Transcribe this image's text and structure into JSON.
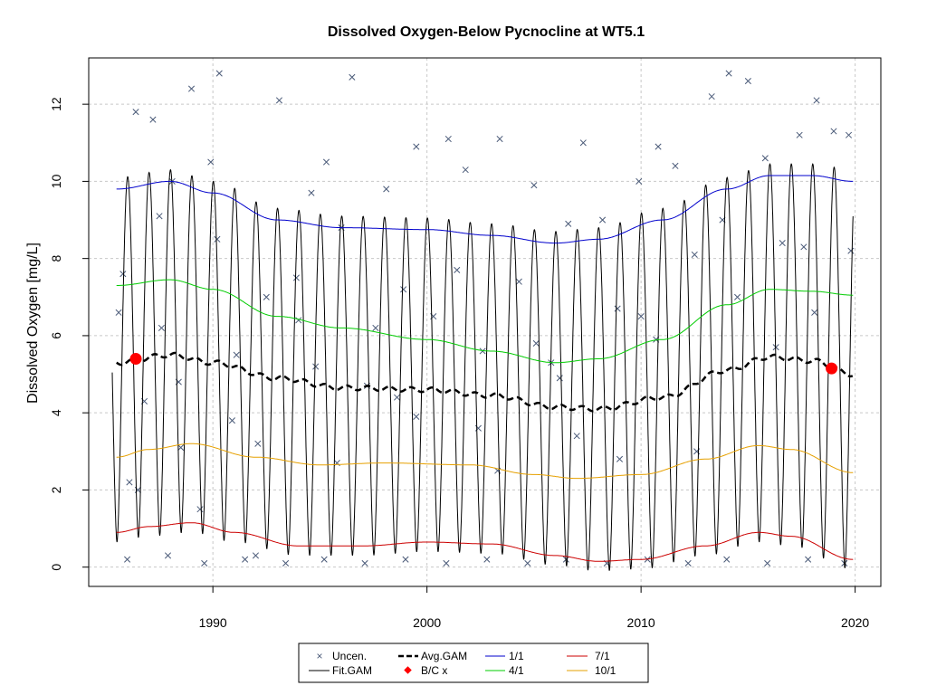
{
  "chart_data": {
    "type": "line",
    "title": "Dissolved Oxygen-Below Pycnocline at WT5.1",
    "xlabel": "",
    "ylabel": "Dissolved Oxygen [mg/L]",
    "xlim": [
      1984.2,
      2021.2
    ],
    "ylim": [
      -0.5,
      13.2
    ],
    "x_ticks": [
      1990,
      2000,
      2010,
      2020
    ],
    "y_ticks": [
      0,
      2,
      4,
      6,
      8,
      10,
      12
    ],
    "grid": true,
    "legend_position": "bottom",
    "legend": [
      "Uncen.",
      "Fit.GAM",
      "Avg.GAM",
      "B/C x",
      "1/1",
      "4/1",
      "7/1",
      "10/1"
    ],
    "colors": {
      "Uncen.": "#4a5a78",
      "Fit.GAM": "#000000",
      "Avg.GAM": "#000000",
      "B/C x": "#ff0000",
      "1/1": "#0000cc",
      "4/1": "#00cc00",
      "7/1": "#cc0000",
      "10/1": "#e6a000"
    },
    "series": [
      {
        "name": "1/1",
        "x": [
          1985.5,
          1988,
          1990,
          1993,
          1996,
          2000,
          2003,
          2006,
          2008,
          2011,
          2014,
          2016,
          2018,
          2019.9
        ],
        "y": [
          9.8,
          10.0,
          9.7,
          9.0,
          8.8,
          8.75,
          8.6,
          8.4,
          8.5,
          9.0,
          9.8,
          10.15,
          10.15,
          10.0
        ]
      },
      {
        "name": "4/1",
        "x": [
          1985.5,
          1988,
          1990,
          1993,
          1996,
          2000,
          2003,
          2006,
          2008,
          2011,
          2014,
          2016,
          2018,
          2019.9
        ],
        "y": [
          7.3,
          7.45,
          7.2,
          6.5,
          6.2,
          5.9,
          5.6,
          5.3,
          5.4,
          5.9,
          6.8,
          7.2,
          7.15,
          7.05
        ]
      },
      {
        "name": "7/1",
        "x": [
          1985.5,
          1987,
          1989,
          1991,
          1994,
          1997,
          2000,
          2003,
          2006,
          2008,
          2010,
          2013,
          2015.5,
          2017,
          2019.9
        ],
        "y": [
          0.9,
          1.05,
          1.15,
          0.9,
          0.55,
          0.55,
          0.65,
          0.6,
          0.3,
          0.15,
          0.2,
          0.55,
          0.9,
          0.8,
          0.2
        ]
      },
      {
        "name": "10/1",
        "x": [
          1985.5,
          1987,
          1989,
          1992,
          1995,
          1998,
          2002,
          2005,
          2007,
          2010,
          2013,
          2015.5,
          2017,
          2019.9
        ],
        "y": [
          2.85,
          3.05,
          3.2,
          2.85,
          2.65,
          2.7,
          2.65,
          2.4,
          2.3,
          2.4,
          2.8,
          3.15,
          3.05,
          2.45
        ]
      },
      {
        "name": "Avg.GAM",
        "x": [
          1985.5,
          1988,
          1990,
          1993,
          1996,
          2000,
          2003,
          2006,
          2008,
          2011,
          2014,
          2016,
          2018,
          2019.9
        ],
        "y": [
          5.3,
          5.5,
          5.3,
          4.9,
          4.65,
          4.6,
          4.45,
          4.15,
          4.1,
          4.4,
          5.1,
          5.45,
          5.35,
          5.0
        ]
      },
      {
        "name": "B/C x",
        "x": [
          1986.4,
          2018.9
        ],
        "y": [
          5.4,
          5.15
        ]
      },
      {
        "name": "Uncen.",
        "x": [
          1985.6,
          1986.1,
          1986.4,
          1986.8,
          1987.2,
          1987.6,
          1988.1,
          1988.5,
          1989.0,
          1989.4,
          1989.9,
          1990.3,
          1991.1,
          1992.0,
          1992.5,
          1993.1,
          1994.0,
          1994.6,
          1995.3,
          1996.0,
          1996.5,
          1997.2,
          1998.1,
          1998.9,
          1999.5,
          2000.3,
          2001.0,
          2001.8,
          2002.6,
          2003.4,
          2004.3,
          2005.0,
          2005.8,
          2006.6,
          2007.3,
          2008.2,
          2009.0,
          2009.9,
          2010.8,
          2011.6,
          2012.5,
          2013.3,
          2014.1,
          2015.0,
          2015.8,
          2016.6,
          2017.4,
          2018.2,
          2019.0,
          2019.7,
          1986.0,
          1987.9,
          1989.6,
          1991.5,
          1993.4,
          1995.2,
          1997.1,
          1999.0,
          2000.9,
          2002.8,
          2004.7,
          2006.5,
          2008.4,
          2010.3,
          2012.2,
          2014.0,
          2015.9,
          2017.8,
          2019.5,
          1985.8,
          1987.5,
          1990.9,
          1994.8,
          1998.6,
          2002.4,
          2006.2,
          2010.0,
          2013.8,
          2017.6,
          1986.5,
          1988.4,
          1990.2,
          1992.1,
          1993.9,
          1995.8,
          1997.6,
          1999.5,
          2001.4,
          2003.3,
          2005.1,
          2007.0,
          2008.9,
          2010.7,
          2012.6,
          2014.5,
          2016.3,
          2018.1,
          2019.8
        ],
        "y": [
          6.6,
          2.2,
          11.8,
          4.3,
          11.6,
          6.2,
          10.0,
          3.1,
          12.4,
          1.5,
          10.5,
          12.8,
          5.5,
          0.3,
          7.0,
          12.1,
          6.4,
          9.7,
          10.5,
          8.8,
          12.7,
          4.7,
          9.8,
          7.2,
          10.9,
          6.5,
          11.1,
          10.3,
          5.6,
          11.1,
          7.4,
          9.9,
          5.3,
          8.9,
          11.0,
          9.0,
          2.8,
          10.0,
          10.9,
          10.4,
          8.1,
          12.2,
          12.8,
          12.6,
          10.6,
          8.4,
          11.2,
          12.1,
          11.3,
          11.2,
          0.2,
          0.3,
          0.1,
          0.2,
          0.1,
          0.2,
          0.1,
          0.2,
          0.1,
          0.2,
          0.1,
          0.2,
          0.1,
          0.2,
          0.1,
          0.2,
          0.1,
          0.2,
          0.1,
          7.6,
          9.1,
          3.8,
          5.2,
          4.4,
          3.6,
          4.9,
          6.5,
          9.0,
          8.3,
          2.0,
          4.8,
          8.5,
          3.2,
          7.5,
          2.7,
          6.2,
          3.9,
          7.7,
          2.5,
          5.8,
          3.4,
          6.7,
          5.9,
          3.0,
          7.0,
          5.7,
          6.6,
          8.2
        ]
      },
      {
        "name": "Fit.GAM",
        "model": "seasonal",
        "x_range": [
          1985.3,
          2019.9
        ]
      }
    ]
  }
}
